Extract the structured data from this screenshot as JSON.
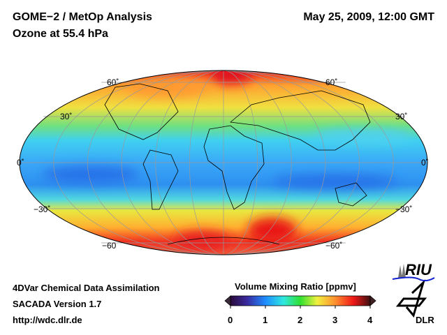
{
  "header": {
    "title": "GOME−2 / MetOp Analysis",
    "subtitle": "Ozone at 55.4 hPa",
    "datetime": "May 25, 2009, 12:00 GMT"
  },
  "map": {
    "projection": "Mollweide",
    "lat_labels_left": [
      "60˚",
      "30˚",
      "0˚",
      "−30˚",
      "−60"
    ],
    "lat_labels_right": [
      "60˚",
      "30˚",
      "0˚",
      "−30˚",
      "−60˚"
    ]
  },
  "colorbar": {
    "title": "Volume Mixing Ratio [ppmv]",
    "ticks": [
      "0",
      "1",
      "2",
      "3",
      "4"
    ],
    "range": [
      0,
      4
    ],
    "colors": [
      "#2a0a3a",
      "#3a2aa0",
      "#1e8cff",
      "#30e8e0",
      "#30e030",
      "#f0f040",
      "#ff9030",
      "#f01818",
      "#401010"
    ]
  },
  "footer": {
    "line1": "4DVar Chemical Data Assimilation",
    "line2": "SACADA Version 1.7",
    "url": "http://wdc.dlr.de"
  },
  "logos": {
    "riu": "RIU",
    "dlr": "DLR"
  }
}
